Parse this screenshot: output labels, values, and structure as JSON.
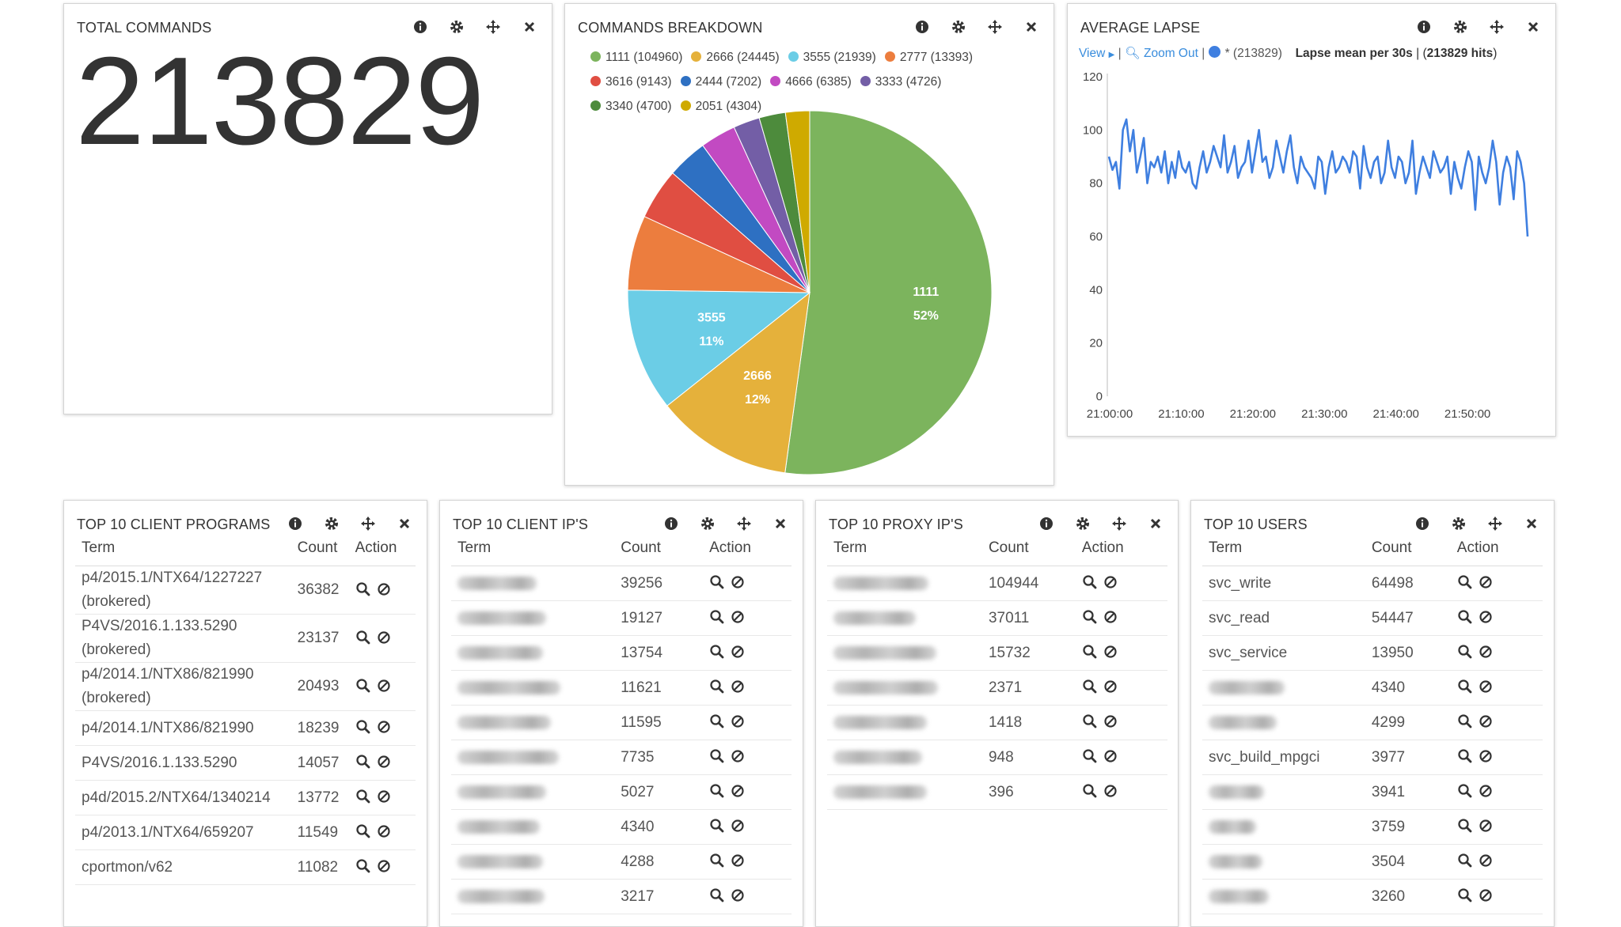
{
  "panels": {
    "total": {
      "title": "TOTAL COMMANDS",
      "value": "213829"
    },
    "breakdown": {
      "title": "COMMANDS BREAKDOWN",
      "legend": [
        {
          "label": "1111 (104960)",
          "color": "#7cb45d"
        },
        {
          "label": "2666 (24445)",
          "color": "#e5b13b"
        },
        {
          "label": "3555 (21939)",
          "color": "#6bcde6"
        },
        {
          "label": "2777 (13393)",
          "color": "#ec7d3e"
        },
        {
          "label": "3616 (9143)",
          "color": "#e04e42"
        },
        {
          "label": "2444 (7202)",
          "color": "#2e70c2"
        },
        {
          "label": "4666 (6385)",
          "color": "#c24ac2"
        },
        {
          "label": "3333 (4726)",
          "color": "#735ea6"
        },
        {
          "label": "3340 (4700)",
          "color": "#4d8b3c"
        },
        {
          "label": "2051 (4304)",
          "color": "#cfaa00"
        }
      ],
      "slice_labels": [
        {
          "name": "1111",
          "pct": "52%"
        },
        {
          "name": "2666",
          "pct": "12%"
        },
        {
          "name": "3555",
          "pct": "11%"
        }
      ]
    },
    "lapse": {
      "title": "AVERAGE LAPSE",
      "view": "View",
      "zoom_out": "Zoom Out",
      "series_label": "* (213829)",
      "mean_label": "Lapse mean per 30s",
      "hits": "213829 hits",
      "series_color": "#3f7fe0"
    },
    "programs": {
      "title": "TOP 10 CLIENT PROGRAMS",
      "headers": [
        "Term",
        "Count",
        "Action"
      ],
      "rows": [
        {
          "term": "p4/2015.1/NTX64/1227227 (brokered)",
          "count": "36382"
        },
        {
          "term": "P4VS/2016.1.133.5290 (brokered)",
          "count": "23137"
        },
        {
          "term": "p4/2014.1/NTX86/821990 (brokered)",
          "count": "20493"
        },
        {
          "term": "p4/2014.1/NTX86/821990",
          "count": "18239"
        },
        {
          "term": "P4VS/2016.1.133.5290",
          "count": "14057"
        },
        {
          "term": "p4d/2015.2/NTX64/1340214",
          "count": "13772"
        },
        {
          "term": "p4/2013.1/NTX64/659207",
          "count": "11549"
        },
        {
          "term": "cportmon/v62",
          "count": "11082"
        }
      ]
    },
    "clientips": {
      "title": "TOP 10 CLIENT IP'S",
      "headers": [
        "Term",
        "Count",
        "Action"
      ],
      "rows": [
        {
          "count": "39256"
        },
        {
          "count": "19127"
        },
        {
          "count": "13754"
        },
        {
          "count": "11621"
        },
        {
          "count": "11595"
        },
        {
          "count": "7735"
        },
        {
          "count": "5027"
        },
        {
          "count": "4340"
        },
        {
          "count": "4288"
        },
        {
          "count": "3217"
        }
      ]
    },
    "proxyips": {
      "title": "TOP 10 PROXY IP'S",
      "headers": [
        "Term",
        "Count",
        "Action"
      ],
      "rows": [
        {
          "count": "104944"
        },
        {
          "count": "37011"
        },
        {
          "count": "15732"
        },
        {
          "count": "2371"
        },
        {
          "count": "1418"
        },
        {
          "count": "948"
        },
        {
          "count": "396"
        }
      ]
    },
    "users": {
      "title": "TOP 10 USERS",
      "headers": [
        "Term",
        "Count",
        "Action"
      ],
      "rows": [
        {
          "term": "svc_write",
          "count": "64498"
        },
        {
          "term": "svc_read",
          "count": "54447"
        },
        {
          "term": "svc_service",
          "count": "13950"
        },
        {
          "term": "",
          "count": "4340"
        },
        {
          "term": "",
          "count": "4299"
        },
        {
          "term": "svc_build_mpgci",
          "count": "3977"
        },
        {
          "term": "",
          "count": "3941"
        },
        {
          "term": "",
          "count": "3759"
        },
        {
          "term": "",
          "count": "3504"
        },
        {
          "term": "",
          "count": "3260"
        }
      ]
    }
  },
  "chart_data": [
    {
      "type": "pie",
      "categories": [
        "1111",
        "2666",
        "3555",
        "2777",
        "3616",
        "2444",
        "4666",
        "3333",
        "3340",
        "2051"
      ],
      "values": [
        104960,
        24445,
        21939,
        13393,
        9143,
        7202,
        6385,
        4726,
        4700,
        4304
      ]
    },
    {
      "type": "line",
      "xlabel": "",
      "ylabel": "",
      "ylim": [
        0,
        120
      ],
      "yticks": [
        "0",
        "20",
        "40",
        "60",
        "80",
        "100",
        "120"
      ],
      "xticks": [
        "21:00:00",
        "21:10:00",
        "21:20:00",
        "21:30:00",
        "21:40:00",
        "21:50:00"
      ],
      "xlim_minutes": [
        0,
        59.5
      ],
      "series": [
        {
          "name": "*",
          "values": [
            90,
            85,
            88,
            78,
            100,
            104,
            92,
            100,
            84,
            90,
            97,
            80,
            88,
            86,
            90,
            84,
            92,
            80,
            88,
            82,
            92,
            86,
            84,
            88,
            80,
            78,
            86,
            92,
            84,
            88,
            94,
            90,
            86,
            98,
            84,
            88,
            94,
            82,
            86,
            88,
            96,
            84,
            92,
            100,
            88,
            90,
            82,
            86,
            96,
            90,
            84,
            92,
            98,
            86,
            80,
            90,
            86,
            84,
            82,
            78,
            90,
            88,
            76,
            86,
            92,
            84,
            86,
            90,
            88,
            84,
            92,
            90,
            78,
            94,
            86,
            82,
            88,
            90,
            80,
            84,
            96,
            86,
            82,
            90,
            88,
            80,
            84,
            96,
            76,
            84,
            90,
            86,
            82,
            92,
            88,
            84,
            86,
            90,
            76,
            88,
            82,
            78,
            86,
            92,
            88,
            70,
            90,
            84,
            80,
            86,
            96,
            88,
            72,
            84,
            90,
            86,
            74,
            92,
            88,
            80,
            60
          ]
        }
      ]
    }
  ]
}
